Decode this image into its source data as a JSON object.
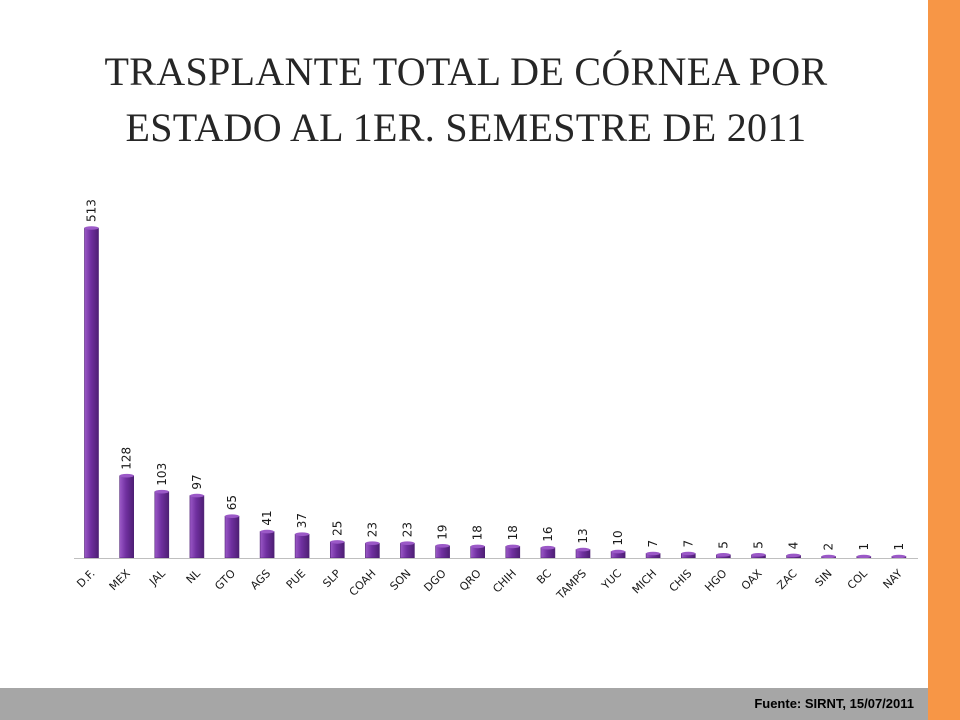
{
  "title": {
    "line1": "TRASPLANTE TOTAL DE CÓRNEA POR",
    "line2": "ESTADO AL 1ER. SEMESTRE DE 2011"
  },
  "footer": {
    "source": "Fuente: SIRNT, 15/07/2011"
  },
  "colors": {
    "bar": "#7030a0",
    "bar_light": "#9b59c7",
    "bar_dark": "#4e1f74",
    "side_bar": "#f79646",
    "footer_bar": "#a6a6a6",
    "baseline": "#bfbfbf"
  },
  "chart_data": {
    "type": "bar",
    "title": "TRASPLANTE TOTAL DE CÓRNEA POR ESTADO AL 1ER. SEMESTRE DE 2011",
    "categories": [
      "D.F.",
      "MEX",
      "JAL",
      "NL",
      "GTO",
      "AGS",
      "PUE",
      "SLP",
      "COAH",
      "SON",
      "DGO",
      "QRO",
      "CHIH",
      "BC",
      "TAMPS",
      "YUC",
      "MICH",
      "CHIS",
      "HGO",
      "OAX",
      "ZAC",
      "SIN",
      "COL",
      "NAY"
    ],
    "values": [
      513,
      128,
      103,
      97,
      65,
      41,
      37,
      25,
      23,
      23,
      19,
      18,
      18,
      16,
      13,
      10,
      7,
      7,
      5,
      5,
      4,
      2,
      1,
      1
    ],
    "value_labels": [
      "513",
      "128",
      "103",
      "97",
      "65",
      "41",
      "37",
      "25",
      "23",
      "23",
      "19",
      "18",
      "18",
      "16",
      "13",
      "10",
      "7",
      "7",
      "5",
      "5",
      "4",
      "2",
      "1",
      "1"
    ],
    "xlabel": "",
    "ylabel": "",
    "ylim": [
      0,
      513
    ],
    "grid": false,
    "legend": "none"
  }
}
